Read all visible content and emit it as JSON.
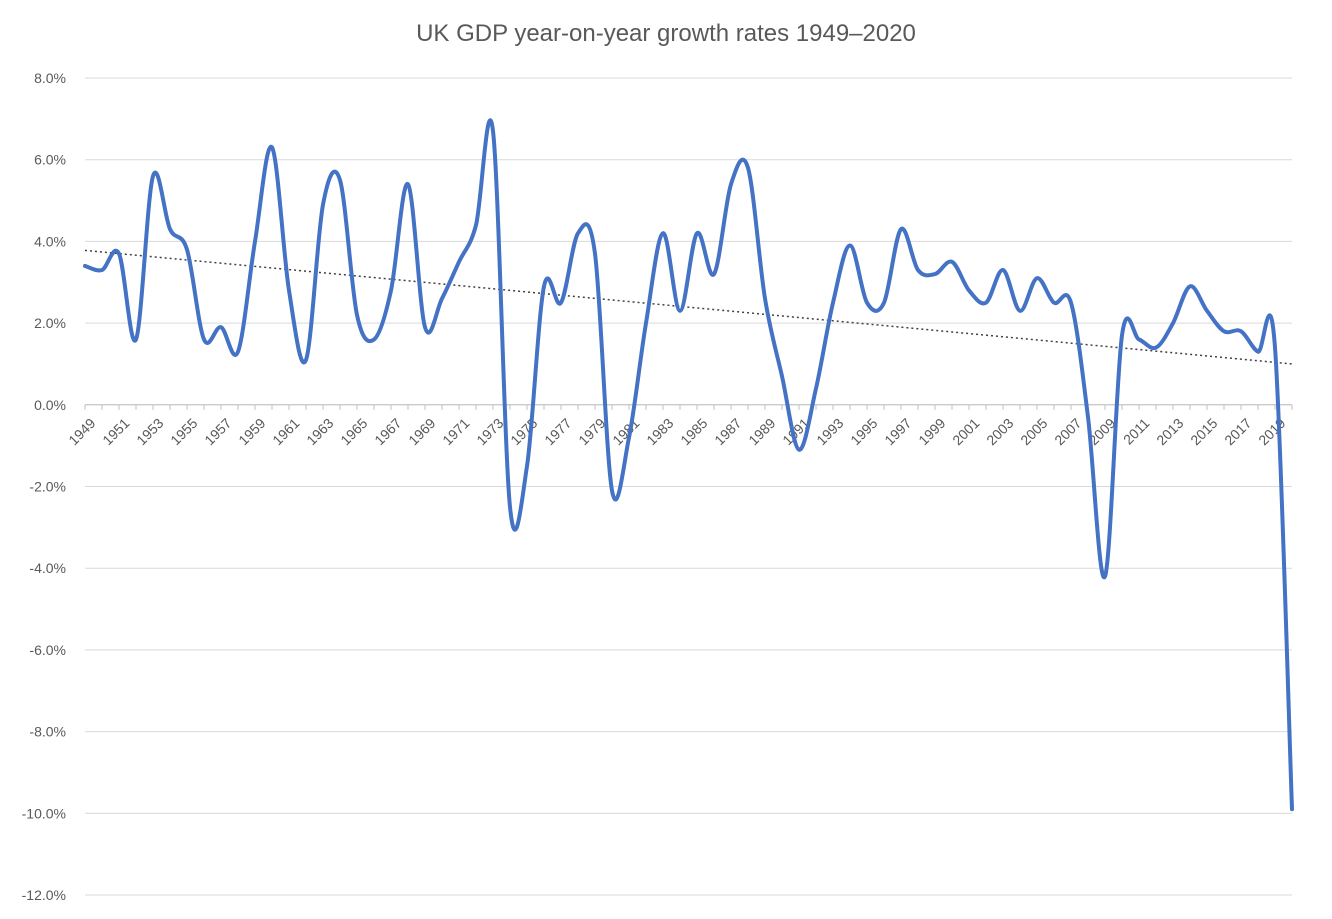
{
  "chart_data": {
    "type": "line",
    "title": "UK GDP year-on-year growth rates 1949–2020",
    "xlabel": "",
    "ylabel": "",
    "ylim": [
      -12,
      8
    ],
    "y_tick_values": [
      8,
      6,
      4,
      2,
      0,
      -2,
      -4,
      -6,
      -8,
      -10,
      -12
    ],
    "y_tick_labels": [
      "8.0%",
      "6.0%",
      "4.0%",
      "2.0%",
      "0.0%",
      "-2.0%",
      "-4.0%",
      "-6.0%",
      "-8.0%",
      "-10.0%",
      "-12.0%"
    ],
    "x": [
      1949,
      1950,
      1951,
      1952,
      1953,
      1954,
      1955,
      1956,
      1957,
      1958,
      1959,
      1960,
      1961,
      1962,
      1963,
      1964,
      1965,
      1966,
      1967,
      1968,
      1969,
      1970,
      1971,
      1972,
      1973,
      1974,
      1975,
      1976,
      1977,
      1978,
      1979,
      1980,
      1981,
      1982,
      1983,
      1984,
      1985,
      1986,
      1987,
      1988,
      1989,
      1990,
      1991,
      1992,
      1993,
      1994,
      1995,
      1996,
      1997,
      1998,
      1999,
      2000,
      2001,
      2002,
      2003,
      2004,
      2005,
      2006,
      2007,
      2008,
      2009,
      2010,
      2011,
      2012,
      2013,
      2014,
      2015,
      2016,
      2017,
      2018,
      2019,
      2020
    ],
    "x_tick_labels": [
      "1949",
      "1951",
      "1953",
      "1955",
      "1957",
      "1959",
      "1961",
      "1963",
      "1965",
      "1967",
      "1969",
      "1971",
      "1973",
      "1975",
      "1977",
      "1979",
      "1981",
      "1983",
      "1985",
      "1987",
      "1989",
      "1991",
      "1993",
      "1995",
      "1997",
      "1999",
      "2001",
      "2003",
      "2005",
      "2007",
      "2009",
      "2011",
      "2013",
      "2015",
      "2017",
      "2019"
    ],
    "grid": true,
    "legend": "none",
    "series": [
      {
        "color": "#4472C4",
        "values": [
          3.4,
          3.3,
          3.7,
          1.6,
          5.6,
          4.3,
          3.8,
          1.6,
          1.9,
          1.3,
          4.0,
          6.3,
          2.8,
          1.1,
          4.9,
          5.5,
          2.2,
          1.6,
          2.8,
          5.4,
          1.9,
          2.6,
          3.5,
          4.4,
          6.7,
          -2.5,
          -1.5,
          2.9,
          2.5,
          4.2,
          3.7,
          -2.1,
          -0.8,
          2.0,
          4.2,
          2.3,
          4.2,
          3.2,
          5.4,
          5.8,
          2.6,
          0.7,
          -1.1,
          0.4,
          2.5,
          3.9,
          2.5,
          2.5,
          4.3,
          3.3,
          3.2,
          3.5,
          2.8,
          2.5,
          3.3,
          2.3,
          3.1,
          2.5,
          2.5,
          -0.3,
          -4.2,
          1.7,
          1.6,
          1.4,
          2.0,
          2.9,
          2.3,
          1.8,
          1.8,
          1.3,
          1.4,
          -9.9
        ]
      }
    ],
    "trendline": {
      "type": "linear",
      "color": "#404040",
      "start": [
        1949,
        3.78
      ],
      "end": [
        2020,
        1.0
      ]
    }
  }
}
